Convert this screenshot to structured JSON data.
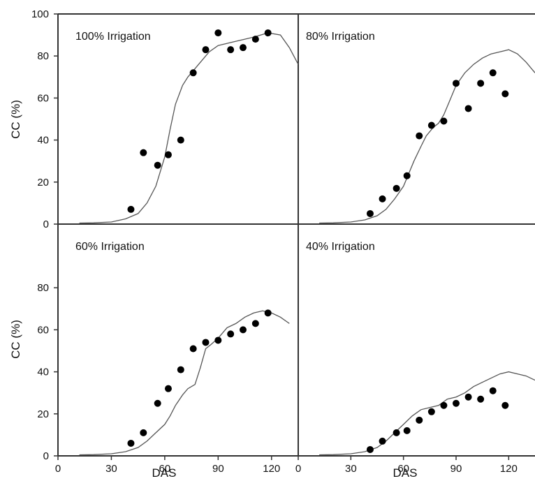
{
  "chart_data": {
    "type": "scatter",
    "layout": "2x2",
    "xlabel": "DAS",
    "ylabel": "CC (%)",
    "xlim": [
      0,
      135
    ],
    "ylim": [
      0,
      100
    ],
    "xticks": [
      0,
      30,
      60,
      90,
      120
    ],
    "yticks_top": [
      0,
      20,
      40,
      60,
      80,
      100
    ],
    "yticks_bottom": [
      0,
      20,
      40,
      60,
      80
    ],
    "colors": {
      "axis": "#333333",
      "line": "#555555",
      "points": "#000000"
    },
    "panels": [
      {
        "title": "100% Irrigation",
        "observed": {
          "x": [
            41,
            48,
            56,
            62,
            69,
            76,
            83,
            90,
            97,
            104,
            111,
            118
          ],
          "y": [
            7,
            34,
            28,
            33,
            40,
            72,
            83,
            91,
            83,
            84,
            88,
            91
          ]
        },
        "simulated": {
          "x": [
            12,
            20,
            30,
            38,
            45,
            50,
            55,
            60,
            63,
            66,
            70,
            73,
            76,
            80,
            85,
            90,
            100,
            110,
            118,
            125,
            130,
            135
          ],
          "y": [
            0.5,
            0.6,
            1,
            2.5,
            5,
            10,
            18,
            32,
            45,
            57,
            66,
            70,
            73,
            77,
            82,
            85,
            87,
            89,
            91,
            90,
            84,
            76
          ]
        }
      },
      {
        "title": "80% Irrigation",
        "observed": {
          "x": [
            41,
            48,
            56,
            62,
            69,
            76,
            83,
            90,
            97,
            104,
            111,
            118
          ],
          "y": [
            5,
            12,
            17,
            23,
            42,
            47,
            49,
            67,
            55,
            67,
            72,
            62
          ]
        },
        "simulated": {
          "x": [
            12,
            20,
            30,
            38,
            45,
            50,
            55,
            60,
            63,
            66,
            70,
            73,
            77,
            80,
            83,
            86,
            90,
            95,
            100,
            105,
            110,
            115,
            120,
            125,
            130,
            135
          ],
          "y": [
            0.5,
            0.6,
            1,
            2,
            4,
            7,
            12,
            18,
            24,
            30,
            37,
            42,
            46,
            48,
            52,
            58,
            66,
            72,
            76,
            79,
            81,
            82,
            83,
            81,
            77,
            72
          ]
        }
      },
      {
        "title": "60% Irrigation",
        "observed": {
          "x": [
            41,
            48,
            56,
            62,
            69,
            76,
            83,
            90,
            97,
            104,
            111,
            118
          ],
          "y": [
            6,
            11,
            25,
            32,
            41,
            51,
            54,
            55,
            58,
            60,
            63,
            68
          ]
        },
        "simulated": {
          "x": [
            12,
            20,
            30,
            38,
            45,
            50,
            55,
            60,
            63,
            66,
            70,
            73,
            77,
            80,
            83,
            86,
            90,
            95,
            100,
            105,
            110,
            115,
            120,
            125,
            130
          ],
          "y": [
            0.5,
            0.6,
            1,
            2,
            4,
            7,
            11,
            15,
            19,
            24,
            29,
            32,
            34,
            42,
            51,
            53,
            56,
            61,
            63,
            66,
            68,
            69,
            68,
            66,
            63
          ]
        }
      },
      {
        "title": "40% Irrigation",
        "observed": {
          "x": [
            41,
            48,
            56,
            62,
            69,
            76,
            83,
            90,
            97,
            104,
            111,
            118
          ],
          "y": [
            3,
            7,
            11,
            12,
            17,
            21,
            24,
            25,
            28,
            27,
            31,
            24
          ]
        },
        "simulated": {
          "x": [
            12,
            20,
            30,
            38,
            45,
            50,
            55,
            60,
            65,
            70,
            75,
            80,
            85,
            90,
            95,
            100,
            105,
            110,
            115,
            120,
            125,
            130,
            135
          ],
          "y": [
            0.5,
            0.6,
            1,
            2,
            4,
            7,
            11,
            15,
            19,
            22,
            23,
            24,
            27,
            28,
            30,
            33,
            35,
            37,
            39,
            40,
            39,
            38,
            36
          ]
        }
      }
    ]
  }
}
